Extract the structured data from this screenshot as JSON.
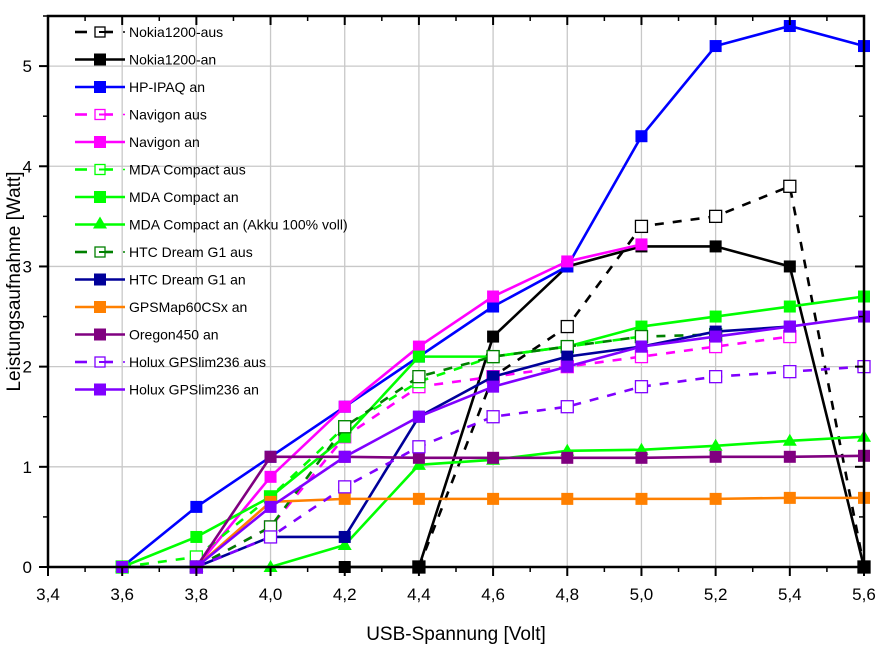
{
  "chart_data": {
    "type": "line",
    "title": "",
    "xlabel": "USB-Spannung [Volt]",
    "ylabel": "Leistungsaufnahme [Watt]",
    "xlim": [
      3.4,
      5.6
    ],
    "ylim": [
      0,
      5.5
    ],
    "grid": true,
    "legend_position": "top-left",
    "x_ticks": [
      "3,4",
      "3,6",
      "3,8",
      "4,0",
      "4,2",
      "4,4",
      "4,6",
      "4,8",
      "5,0",
      "5,2",
      "5,4",
      "5,6"
    ],
    "x_tick_values": [
      3.4,
      3.6,
      3.8,
      4.0,
      4.2,
      4.4,
      4.6,
      4.8,
      5.0,
      5.2,
      5.4,
      5.6
    ],
    "y_ticks": [
      "0",
      "1",
      "2",
      "3",
      "4",
      "5"
    ],
    "y_tick_values": [
      0,
      1,
      2,
      3,
      4,
      5
    ],
    "series": [
      {
        "name": "Nokia1200-aus",
        "color": "#000000",
        "dashed": true,
        "marker": "open-square",
        "x": [
          4.4,
          4.6,
          4.8,
          5.0,
          5.2,
          5.4,
          5.6
        ],
        "y": [
          0,
          1.9,
          2.4,
          3.4,
          3.5,
          3.8,
          0
        ]
      },
      {
        "name": "Nokia1200-an",
        "color": "#000000",
        "dashed": false,
        "marker": "square",
        "x": [
          4.2,
          4.4,
          4.6,
          4.8,
          5.0,
          5.2,
          5.4,
          5.6
        ],
        "y": [
          0,
          0,
          2.3,
          3.0,
          3.2,
          3.2,
          3.0,
          0
        ]
      },
      {
        "name": "HP-IPAQ an",
        "color": "#0000ff",
        "dashed": false,
        "marker": "square",
        "x": [
          3.6,
          3.8,
          4.0,
          4.2,
          4.4,
          4.6,
          4.8,
          5.0,
          5.2,
          5.4,
          5.6
        ],
        "y": [
          0,
          0.6,
          1.1,
          1.6,
          2.1,
          2.6,
          3.0,
          4.3,
          5.2,
          5.4,
          5.2
        ]
      },
      {
        "name": "Navigon aus",
        "color": "#ff00ff",
        "dashed": true,
        "marker": "open-square",
        "x": [
          3.8,
          4.0,
          4.2,
          4.4,
          4.6,
          4.8,
          5.0,
          5.2,
          5.4
        ],
        "y": [
          0,
          0.4,
          1.3,
          1.8,
          1.9,
          2.0,
          2.1,
          2.2,
          2.3
        ]
      },
      {
        "name": "Navigon an",
        "color": "#ff00ff",
        "dashed": false,
        "marker": "square",
        "x": [
          3.8,
          4.0,
          4.2,
          4.4,
          4.6,
          4.8,
          5.0
        ],
        "y": [
          0,
          0.9,
          1.6,
          2.2,
          2.7,
          3.05,
          3.22
        ]
      },
      {
        "name": "MDA Compact aus",
        "color": "#00ff00",
        "dashed": true,
        "marker": "open-square",
        "x": [
          3.6,
          3.8,
          4.0,
          4.2,
          4.4,
          4.6,
          4.8,
          5.0
        ],
        "y": [
          0,
          0.1,
          0.7,
          1.4,
          1.85,
          2.1,
          2.2,
          2.3
        ]
      },
      {
        "name": "MDA Compact an",
        "color": "#00ff00",
        "dashed": false,
        "marker": "square",
        "x": [
          3.6,
          3.8,
          4.0,
          4.2,
          4.4,
          4.6,
          4.8,
          5.0,
          5.2,
          5.4,
          5.6
        ],
        "y": [
          0,
          0.3,
          0.7,
          1.3,
          2.1,
          2.1,
          2.2,
          2.4,
          2.5,
          2.6,
          2.7
        ]
      },
      {
        "name": "MDA Compact an (Akku 100% voll)",
        "color": "#00ff00",
        "dashed": false,
        "marker": "triangle",
        "x": [
          3.6,
          3.8,
          4.0,
          4.2,
          4.4,
          4.6,
          4.8,
          5.0,
          5.2,
          5.4,
          5.6
        ],
        "y": [
          0,
          0,
          0,
          0.22,
          1.02,
          1.07,
          1.16,
          1.17,
          1.21,
          1.26,
          1.3
        ]
      },
      {
        "name": "HTC Dream G1 aus",
        "color": "#008000",
        "dashed": true,
        "marker": "open-square",
        "x": [
          3.8,
          4.0,
          4.2,
          4.4,
          4.6,
          4.8,
          5.0,
          5.2
        ],
        "y": [
          0,
          0.4,
          1.4,
          1.9,
          2.1,
          2.2,
          2.3,
          2.32
        ]
      },
      {
        "name": "HTC Dream G1 an",
        "color": "#000099",
        "dashed": false,
        "marker": "square",
        "x": [
          3.8,
          4.0,
          4.2,
          4.4,
          4.6,
          4.8,
          5.0,
          5.2,
          5.4
        ],
        "y": [
          0,
          0.3,
          0.3,
          1.5,
          1.9,
          2.1,
          2.2,
          2.35,
          2.4
        ]
      },
      {
        "name": "GPSMap60CSx an",
        "color": "#ff8000",
        "dashed": false,
        "marker": "square",
        "x": [
          3.8,
          4.0,
          4.2,
          4.4,
          4.6,
          4.8,
          5.0,
          5.2,
          5.4,
          5.6
        ],
        "y": [
          0,
          0.65,
          0.68,
          0.68,
          0.68,
          0.68,
          0.68,
          0.68,
          0.69,
          0.69
        ]
      },
      {
        "name": "Oregon450 an",
        "color": "#800080",
        "dashed": false,
        "marker": "square",
        "x": [
          3.8,
          4.0,
          4.2,
          4.4,
          4.6,
          4.8,
          5.0,
          5.2,
          5.4,
          5.6
        ],
        "y": [
          0,
          1.1,
          1.1,
          1.09,
          1.09,
          1.09,
          1.09,
          1.1,
          1.1,
          1.11
        ]
      },
      {
        "name": "Holux GPSlim236 aus",
        "color": "#8000ff",
        "dashed": true,
        "marker": "open-square",
        "x": [
          3.8,
          4.0,
          4.2,
          4.4,
          4.6,
          4.8,
          5.0,
          5.2,
          5.4,
          5.6
        ],
        "y": [
          0,
          0.3,
          0.8,
          1.2,
          1.5,
          1.6,
          1.8,
          1.9,
          1.95,
          2.0
        ]
      },
      {
        "name": "Holux GPSlim236 an",
        "color": "#8000ff",
        "dashed": false,
        "marker": "square",
        "x": [
          3.6,
          3.8,
          4.0,
          4.2,
          4.4,
          4.6,
          4.8,
          5.0,
          5.2,
          5.4,
          5.6
        ],
        "y": [
          0,
          0,
          0.6,
          1.1,
          1.5,
          1.8,
          2.0,
          2.2,
          2.3,
          2.4,
          2.5
        ]
      }
    ]
  }
}
